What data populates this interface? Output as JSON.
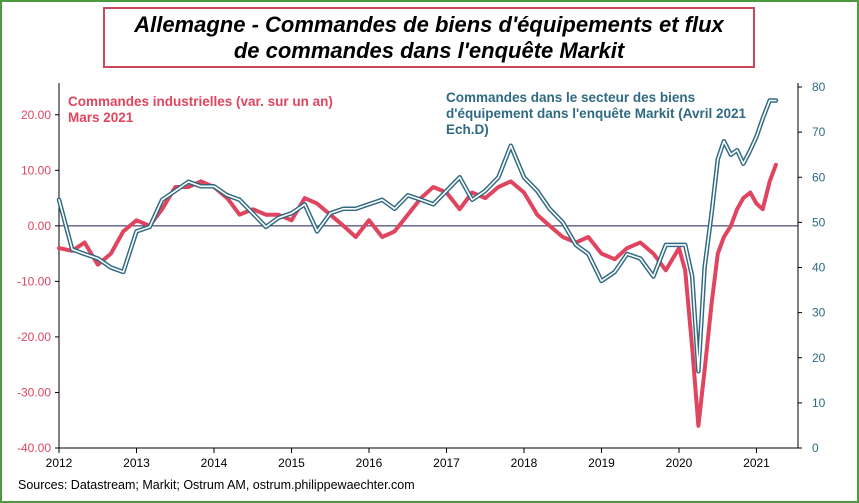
{
  "chart_data": {
    "type": "line",
    "title": "Allemagne - Commandes de biens d'équipements et flux de commandes dans l'enquête Markit",
    "title_lines": [
      "Allemagne - Commandes de biens d'équipements et flux",
      "de commandes dans l'enquête Markit"
    ],
    "source": "Sources: Datastream; Markit; Ostrum AM, ostrum.philippewaechter.com",
    "x_ticks": [
      "2012",
      "2013",
      "2014",
      "2015",
      "2016",
      "2017",
      "2018",
      "2019",
      "2020",
      "2021"
    ],
    "y_left": {
      "range": [
        -40,
        25
      ],
      "ticks": [
        "20.00",
        "10.00",
        "0.00",
        "-10.00",
        "-20.00",
        "-30.00",
        "-40.00"
      ],
      "tick_values": [
        20,
        10,
        0,
        -10,
        -20,
        -30,
        -40
      ],
      "color": "#e0455f"
    },
    "y_right": {
      "range": [
        0,
        80
      ],
      "ticks": [
        "80",
        "70",
        "60",
        "50",
        "40",
        "30",
        "20",
        "10",
        "0"
      ],
      "tick_values": [
        80,
        70,
        60,
        50,
        40,
        30,
        20,
        10,
        0
      ],
      "color": "#2f6a82"
    },
    "zero_line": true,
    "grid": false,
    "series": [
      {
        "name": "Commandes industrielles (var. sur un an)",
        "name_line2": "Mars 2021",
        "axis": "left",
        "color": "#e0455f",
        "x": [
          2012.0,
          2012.17,
          2012.33,
          2012.5,
          2012.67,
          2012.83,
          2013.0,
          2013.17,
          2013.33,
          2013.5,
          2013.67,
          2013.83,
          2014.0,
          2014.17,
          2014.33,
          2014.5,
          2014.67,
          2014.83,
          2015.0,
          2015.17,
          2015.33,
          2015.5,
          2015.67,
          2015.83,
          2016.0,
          2016.17,
          2016.33,
          2016.5,
          2016.67,
          2016.83,
          2017.0,
          2017.17,
          2017.33,
          2017.5,
          2017.67,
          2017.83,
          2018.0,
          2018.17,
          2018.33,
          2018.5,
          2018.67,
          2018.83,
          2019.0,
          2019.17,
          2019.33,
          2019.5,
          2019.67,
          2019.83,
          2020.0,
          2020.08,
          2020.17,
          2020.25,
          2020.33,
          2020.42,
          2020.5,
          2020.58,
          2020.67,
          2020.75,
          2020.83,
          2020.92,
          2021.0,
          2021.08,
          2021.17,
          2021.25
        ],
        "values": [
          -4,
          -4.5,
          -3,
          -7,
          -5,
          -1,
          1,
          0,
          3,
          7,
          7,
          8,
          7,
          5,
          2,
          3,
          2,
          2,
          1,
          5,
          4,
          2,
          0,
          -2,
          1,
          -2,
          -1,
          2,
          5,
          7,
          6,
          3,
          6,
          5,
          7,
          8,
          6,
          2,
          0,
          -2,
          -3,
          -2,
          -5,
          -6,
          -4,
          -3,
          -5,
          -8,
          -4,
          -8,
          -22,
          -36,
          -26,
          -14,
          -5,
          -2,
          0,
          3,
          5,
          6,
          4,
          3,
          8,
          11
        ]
      },
      {
        "name": "Commandes dans le secteur des biens d'équipement dans l'enquête Markit (Avril 2021 Ech.D)",
        "axis": "right",
        "color": "#2f6a82",
        "x": [
          2012.0,
          2012.17,
          2012.33,
          2012.5,
          2012.67,
          2012.83,
          2013.0,
          2013.17,
          2013.33,
          2013.5,
          2013.67,
          2013.83,
          2014.0,
          2014.17,
          2014.33,
          2014.5,
          2014.67,
          2014.83,
          2015.0,
          2015.17,
          2015.33,
          2015.5,
          2015.67,
          2015.83,
          2016.0,
          2016.17,
          2016.33,
          2016.5,
          2016.67,
          2016.83,
          2017.0,
          2017.17,
          2017.33,
          2017.5,
          2017.67,
          2017.83,
          2018.0,
          2018.17,
          2018.33,
          2018.5,
          2018.67,
          2018.83,
          2019.0,
          2019.17,
          2019.33,
          2019.5,
          2019.67,
          2019.83,
          2020.0,
          2020.08,
          2020.17,
          2020.25,
          2020.33,
          2020.42,
          2020.5,
          2020.58,
          2020.67,
          2020.75,
          2020.83,
          2020.92,
          2021.0,
          2021.08,
          2021.17,
          2021.25
        ],
        "values": [
          55,
          44,
          43,
          42,
          40,
          39,
          48,
          49,
          55,
          57,
          59,
          58,
          58,
          56,
          55,
          52,
          49,
          51,
          52,
          54,
          48,
          52,
          53,
          53,
          54,
          55,
          53,
          56,
          55,
          54,
          57,
          60,
          55,
          57,
          60,
          67,
          60,
          57,
          53,
          50,
          45,
          43,
          37,
          39,
          43,
          42,
          38,
          45,
          45,
          45,
          38,
          17,
          40,
          52,
          64,
          68,
          65,
          66,
          63,
          66,
          69,
          73,
          77,
          77
        ]
      }
    ]
  }
}
